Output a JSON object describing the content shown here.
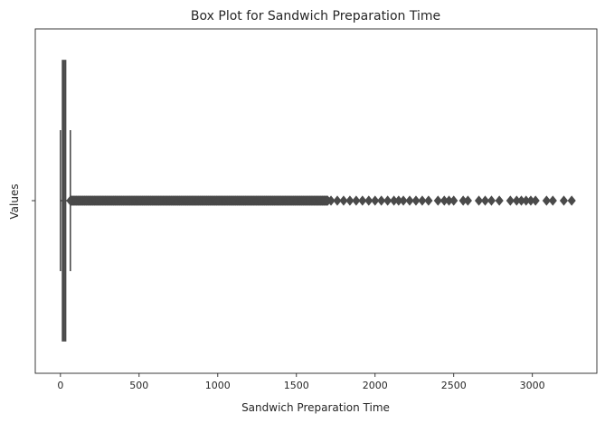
{
  "chart_data": {
    "type": "box",
    "title": "Box Plot for Sandwich Preparation Time",
    "xlabel": "Sandwich Preparation Time",
    "ylabel": "Values",
    "xlim": [
      -160,
      3410
    ],
    "x_ticks": [
      0,
      500,
      1000,
      1500,
      2000,
      2500,
      3000
    ],
    "y_ticks": [
      ""
    ],
    "grid": false,
    "orientation": "horizontal",
    "box": {
      "whisker_low": 0,
      "q1": 13,
      "median": 21,
      "q3": 33,
      "whisker_high": 63
    },
    "outlier_range_dense": [
      63,
      1700
    ],
    "outliers_sparse": [
      1720,
      1760,
      1800,
      1840,
      1880,
      1920,
      1960,
      2000,
      2040,
      2080,
      2120,
      2150,
      2180,
      2220,
      2260,
      2300,
      2340,
      2400,
      2440,
      2470,
      2500,
      2560,
      2590,
      2660,
      2700,
      2740,
      2790,
      2860,
      2900,
      2930,
      2960,
      2990,
      3020,
      3090,
      3130,
      3200,
      3250
    ],
    "colors": {
      "box_stroke": "#4a4a4a",
      "outlier": "#4a4a4a",
      "axis": "#262626"
    }
  }
}
